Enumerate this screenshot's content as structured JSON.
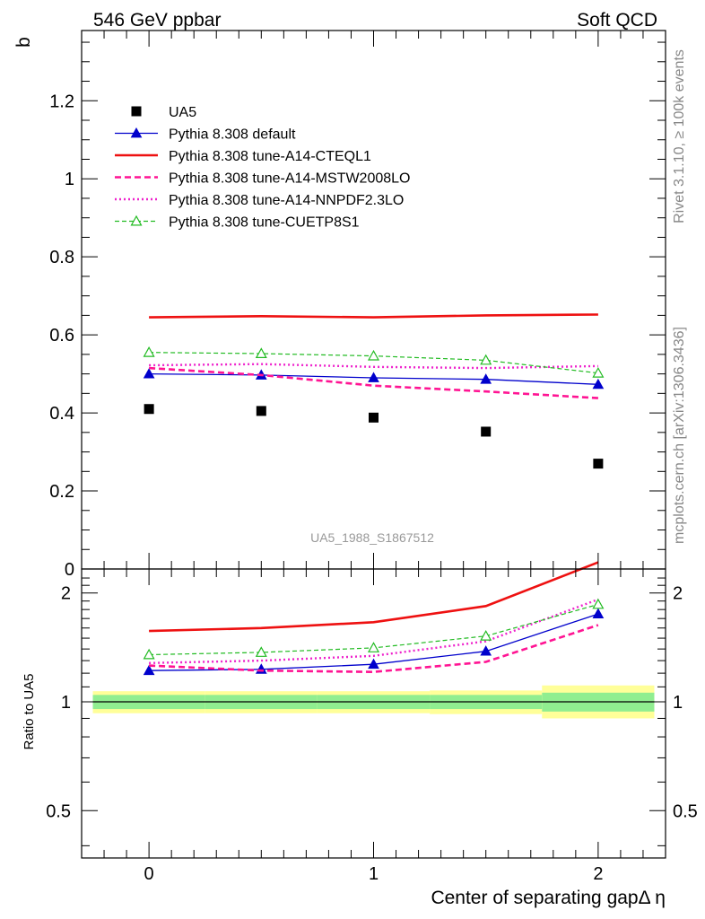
{
  "header": {
    "left": "546 GeV ppbar",
    "right": "Soft QCD"
  },
  "side_labels": {
    "rivet": "Rivet 3.1.10, ≥ 100k events",
    "mcplots": "mcplots.cern.ch [arXiv:1306.3436]"
  },
  "colors": {
    "ua5": "#000000",
    "default": "#0000cc",
    "cteql1": "#ee1111",
    "mstw": "#ff1493",
    "nnpdf": "#ee22cc",
    "cuetp8s1": "#22bb22",
    "band_inner": "#90ee90",
    "band_outer": "#ffff99"
  },
  "chart_data": [
    {
      "type": "scatter",
      "panel": "main",
      "ylabel": "b",
      "ylim": [
        0,
        1.38
      ],
      "xlim": [
        -0.3,
        2.3
      ],
      "yticks": [
        0,
        0.2,
        0.4,
        0.6,
        0.8,
        1,
        1.2
      ],
      "ytick_labels": [
        "0",
        "0.2",
        "0.4",
        "0.6",
        "0.8",
        "1",
        "1.2"
      ],
      "watermark": "UA5_1988_S1867512",
      "legend_position": "top-left",
      "x": [
        0,
        0.5,
        1,
        1.5,
        2
      ],
      "series": [
        {
          "name": "UA5",
          "key": "ua5",
          "style": "square",
          "values": [
            0.41,
            0.405,
            0.388,
            0.352,
            0.27
          ]
        },
        {
          "name": "Pythia 8.308 default",
          "key": "default",
          "style": "line-triangle",
          "values": [
            0.5,
            0.497,
            0.49,
            0.486,
            0.473
          ]
        },
        {
          "name": "Pythia 8.308 tune-A14-CTEQL1",
          "key": "cteql1",
          "style": "solid-thick",
          "values": [
            0.645,
            0.648,
            0.645,
            0.65,
            0.652
          ]
        },
        {
          "name": "Pythia 8.308 tune-A14-MSTW2008LO",
          "key": "mstw",
          "style": "dashed",
          "values": [
            0.515,
            0.497,
            0.47,
            0.455,
            0.438
          ]
        },
        {
          "name": "Pythia 8.308 tune-A14-NNPDF2.3LO",
          "key": "nnpdf",
          "style": "dotted",
          "values": [
            0.522,
            0.525,
            0.518,
            0.515,
            0.52
          ]
        },
        {
          "name": "Pythia 8.308 tune-CUETP8S1",
          "key": "cuetp8s1",
          "style": "dashed-open-triangle",
          "values": [
            0.555,
            0.552,
            0.546,
            0.535,
            0.502
          ]
        }
      ]
    },
    {
      "type": "line",
      "panel": "ratio",
      "ylabel": "Ratio to UA5",
      "xlabel": "Center of separating gapΔ η",
      "ylim": [
        0.37,
        2.33
      ],
      "xlim": [
        -0.3,
        2.3
      ],
      "yticks": [
        0.5,
        1,
        2
      ],
      "ytick_labels": [
        "0.5",
        "1",
        "2"
      ],
      "xticks": [
        0,
        1,
        2
      ],
      "xtick_labels": [
        "0",
        "1",
        "2"
      ],
      "x": [
        0,
        0.5,
        1,
        1.5,
        2
      ],
      "uncertainty_bands": [
        {
          "x_range": [
            -0.25,
            0.25
          ],
          "inner": [
            0.955,
            1.045
          ],
          "outer": [
            0.93,
            1.07
          ]
        },
        {
          "x_range": [
            0.25,
            0.75
          ],
          "inner": [
            0.955,
            1.045
          ],
          "outer": [
            0.93,
            1.07
          ]
        },
        {
          "x_range": [
            0.75,
            1.25
          ],
          "inner": [
            0.955,
            1.045
          ],
          "outer": [
            0.93,
            1.07
          ]
        },
        {
          "x_range": [
            1.25,
            1.75
          ],
          "inner": [
            0.955,
            1.045
          ],
          "outer": [
            0.925,
            1.075
          ]
        },
        {
          "x_range": [
            1.75,
            2.25
          ],
          "inner": [
            0.94,
            1.06
          ],
          "outer": [
            0.9,
            1.11
          ]
        }
      ],
      "series": [
        {
          "name": "Pythia 8.308 default",
          "key": "default",
          "style": "line-triangle",
          "values": [
            1.22,
            1.23,
            1.27,
            1.38,
            1.75
          ]
        },
        {
          "name": "Pythia 8.308 tune-A14-CTEQL1",
          "key": "cteql1",
          "style": "solid-thick",
          "values": [
            1.57,
            1.6,
            1.66,
            1.84,
            2.43
          ]
        },
        {
          "name": "Pythia 8.308 tune-A14-MSTW2008LO",
          "key": "mstw",
          "style": "dashed",
          "values": [
            1.26,
            1.22,
            1.21,
            1.29,
            1.63
          ]
        },
        {
          "name": "Pythia 8.308 tune-A14-NNPDF2.3LO",
          "key": "nnpdf",
          "style": "dotted",
          "values": [
            1.28,
            1.3,
            1.34,
            1.47,
            1.92
          ]
        },
        {
          "name": "Pythia 8.308 tune-CUETP8S1",
          "key": "cuetp8s1",
          "style": "dashed-open-triangle",
          "values": [
            1.35,
            1.37,
            1.41,
            1.52,
            1.86
          ]
        }
      ]
    }
  ]
}
